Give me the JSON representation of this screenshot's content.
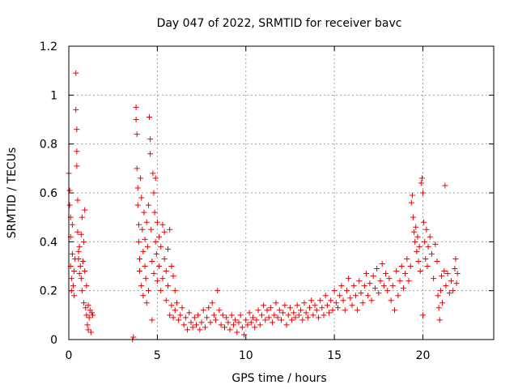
{
  "chart_data": {
    "type": "scatter",
    "title": "Day 047 of 2022, SRMTID for receiver bavc",
    "xlabel": "GPS time / hours",
    "ylabel": "SRMTID / TECUs",
    "xlim": [
      0,
      24
    ],
    "ylim": [
      0,
      1.2
    ],
    "xticks": [
      0,
      5,
      10,
      15,
      20
    ],
    "xtick_labels": [
      "0",
      "5",
      "10",
      "15",
      "20"
    ],
    "yticks": [
      0,
      0.2,
      0.4,
      0.6,
      0.8,
      1,
      1.2
    ],
    "ytick_labels": [
      "0",
      "0.2",
      "0.4",
      "0.6",
      "0.8",
      "1",
      "1.2"
    ],
    "grid": true,
    "marker": "+",
    "series": [
      {
        "name": "SRMTID",
        "color": "#ee0000",
        "points": [
          [
            0.0,
            0.68
          ],
          [
            0.05,
            0.61
          ],
          [
            0.05,
            0.55
          ],
          [
            0.1,
            0.5
          ],
          [
            0.1,
            0.42
          ],
          [
            0.1,
            0.3
          ],
          [
            0.15,
            0.25
          ],
          [
            0.15,
            0.2
          ],
          [
            0.2,
            0.35
          ],
          [
            0.2,
            0.47
          ],
          [
            0.25,
            0.22
          ],
          [
            0.3,
            0.28
          ],
          [
            0.3,
            0.18
          ],
          [
            0.35,
            0.33
          ],
          [
            0.4,
            1.09
          ],
          [
            0.4,
            0.94
          ],
          [
            0.45,
            0.86
          ],
          [
            0.45,
            0.77
          ],
          [
            0.45,
            0.71
          ],
          [
            0.5,
            0.57
          ],
          [
            0.5,
            0.44
          ],
          [
            0.55,
            0.36
          ],
          [
            0.55,
            0.33
          ],
          [
            0.6,
            0.27
          ],
          [
            0.6,
            0.38
          ],
          [
            0.65,
            0.3
          ],
          [
            0.7,
            0.25
          ],
          [
            0.7,
            0.43
          ],
          [
            0.75,
            0.5
          ],
          [
            0.75,
            0.2
          ],
          [
            0.8,
            0.32
          ],
          [
            0.85,
            0.15
          ],
          [
            0.85,
            0.4
          ],
          [
            0.9,
            0.53
          ],
          [
            0.9,
            0.28
          ],
          [
            0.95,
            0.13
          ],
          [
            1.0,
            0.1
          ],
          [
            1.0,
            0.22
          ],
          [
            1.05,
            0.06
          ],
          [
            1.1,
            0.14
          ],
          [
            1.1,
            0.04
          ],
          [
            1.15,
            0.09
          ],
          [
            1.2,
            0.12
          ],
          [
            1.25,
            0.03
          ],
          [
            1.3,
            0.11
          ],
          [
            1.35,
            0.1
          ],
          [
            3.6,
            0.0
          ],
          [
            3.65,
            0.01
          ],
          [
            3.8,
            0.95
          ],
          [
            3.8,
            0.9
          ],
          [
            3.85,
            0.84
          ],
          [
            3.85,
            0.7
          ],
          [
            3.9,
            0.62
          ],
          [
            3.9,
            0.55
          ],
          [
            3.95,
            0.47
          ],
          [
            3.95,
            0.4
          ],
          [
            4.0,
            0.33
          ],
          [
            4.0,
            0.28
          ],
          [
            4.05,
            0.66
          ],
          [
            4.1,
            0.58
          ],
          [
            4.1,
            0.22
          ],
          [
            4.15,
            0.45
          ],
          [
            4.2,
            0.36
          ],
          [
            4.2,
            0.18
          ],
          [
            4.25,
            0.52
          ],
          [
            4.3,
            0.41
          ],
          [
            4.3,
            0.3
          ],
          [
            4.35,
            0.25
          ],
          [
            4.4,
            0.48
          ],
          [
            4.4,
            0.15
          ],
          [
            4.45,
            0.38
          ],
          [
            4.5,
            0.55
          ],
          [
            4.5,
            0.2
          ],
          [
            4.55,
            0.91
          ],
          [
            4.6,
            0.82
          ],
          [
            4.6,
            0.76
          ],
          [
            4.65,
            0.45
          ],
          [
            4.7,
            0.32
          ],
          [
            4.7,
            0.08
          ],
          [
            4.75,
            0.68
          ],
          [
            4.8,
            0.6
          ],
          [
            4.8,
            0.27
          ],
          [
            4.85,
            0.52
          ],
          [
            4.9,
            0.4
          ],
          [
            4.9,
            0.66
          ],
          [
            4.95,
            0.35
          ],
          [
            5.0,
            0.48
          ],
          [
            5.0,
            0.24
          ],
          [
            5.1,
            0.3
          ],
          [
            5.1,
            0.42
          ],
          [
            5.2,
            0.38
          ],
          [
            5.2,
            0.2
          ],
          [
            5.3,
            0.47
          ],
          [
            5.3,
            0.25
          ],
          [
            5.4,
            0.33
          ],
          [
            5.4,
            0.44
          ],
          [
            5.5,
            0.28
          ],
          [
            5.5,
            0.16
          ],
          [
            5.6,
            0.37
          ],
          [
            5.6,
            0.22
          ],
          [
            5.7,
            0.45
          ],
          [
            5.7,
            0.1
          ],
          [
            5.8,
            0.3
          ],
          [
            5.8,
            0.14
          ],
          [
            5.9,
            0.26
          ],
          [
            5.9,
            0.09
          ],
          [
            6.0,
            0.2
          ],
          [
            6.0,
            0.12
          ],
          [
            6.1,
            0.15
          ],
          [
            6.2,
            0.08
          ],
          [
            6.3,
            0.1
          ],
          [
            6.4,
            0.13
          ],
          [
            6.5,
            0.06
          ],
          [
            6.6,
            0.09
          ],
          [
            6.7,
            0.04
          ],
          [
            6.8,
            0.11
          ],
          [
            6.9,
            0.07
          ],
          [
            7.0,
            0.05
          ],
          [
            7.1,
            0.09
          ],
          [
            7.2,
            0.06
          ],
          [
            7.3,
            0.1
          ],
          [
            7.4,
            0.04
          ],
          [
            7.5,
            0.07
          ],
          [
            7.6,
            0.12
          ],
          [
            7.7,
            0.05
          ],
          [
            7.8,
            0.09
          ],
          [
            7.9,
            0.13
          ],
          [
            8.0,
            0.07
          ],
          [
            8.1,
            0.15
          ],
          [
            8.2,
            0.1
          ],
          [
            8.3,
            0.08
          ],
          [
            8.4,
            0.2
          ],
          [
            8.5,
            0.12
          ],
          [
            8.6,
            0.06
          ],
          [
            8.7,
            0.1
          ],
          [
            8.8,
            0.05
          ],
          [
            8.9,
            0.09
          ],
          [
            9.0,
            0.07
          ],
          [
            9.1,
            0.04
          ],
          [
            9.2,
            0.1
          ],
          [
            9.3,
            0.06
          ],
          [
            9.4,
            0.08
          ],
          [
            9.5,
            0.03
          ],
          [
            9.6,
            0.07
          ],
          [
            9.7,
            0.1
          ],
          [
            9.8,
            0.05
          ],
          [
            9.9,
            0.02
          ],
          [
            10.0,
            0.08
          ],
          [
            10.1,
            0.06
          ],
          [
            10.2,
            0.11
          ],
          [
            10.3,
            0.07
          ],
          [
            10.4,
            0.09
          ],
          [
            10.5,
            0.05
          ],
          [
            10.6,
            0.08
          ],
          [
            10.7,
            0.12
          ],
          [
            10.8,
            0.06
          ],
          [
            10.9,
            0.1
          ],
          [
            11.0,
            0.14
          ],
          [
            11.1,
            0.08
          ],
          [
            11.2,
            0.12
          ],
          [
            11.3,
            0.09
          ],
          [
            11.4,
            0.13
          ],
          [
            11.5,
            0.07
          ],
          [
            11.6,
            0.1
          ],
          [
            11.7,
            0.15
          ],
          [
            11.8,
            0.09
          ],
          [
            11.9,
            0.12
          ],
          [
            12.0,
            0.08
          ],
          [
            12.1,
            0.11
          ],
          [
            12.2,
            0.14
          ],
          [
            12.3,
            0.06
          ],
          [
            12.4,
            0.1
          ],
          [
            12.5,
            0.13
          ],
          [
            12.6,
            0.08
          ],
          [
            12.7,
            0.11
          ],
          [
            12.8,
            0.09
          ],
          [
            12.9,
            0.14
          ],
          [
            13.0,
            0.1
          ],
          [
            13.1,
            0.12
          ],
          [
            13.2,
            0.08
          ],
          [
            13.3,
            0.15
          ],
          [
            13.4,
            0.11
          ],
          [
            13.5,
            0.09
          ],
          [
            13.6,
            0.13
          ],
          [
            13.7,
            0.16
          ],
          [
            13.8,
            0.1
          ],
          [
            13.9,
            0.14
          ],
          [
            14.0,
            0.12
          ],
          [
            14.1,
            0.09
          ],
          [
            14.2,
            0.16
          ],
          [
            14.3,
            0.13
          ],
          [
            14.4,
            0.1
          ],
          [
            14.5,
            0.18
          ],
          [
            14.6,
            0.14
          ],
          [
            14.7,
            0.11
          ],
          [
            14.8,
            0.16
          ],
          [
            14.9,
            0.12
          ],
          [
            15.0,
            0.2
          ],
          [
            15.1,
            0.15
          ],
          [
            15.2,
            0.13
          ],
          [
            15.3,
            0.18
          ],
          [
            15.4,
            0.22
          ],
          [
            15.5,
            0.16
          ],
          [
            15.6,
            0.12
          ],
          [
            15.7,
            0.2
          ],
          [
            15.8,
            0.25
          ],
          [
            15.9,
            0.17
          ],
          [
            16.0,
            0.14
          ],
          [
            16.1,
            0.22
          ],
          [
            16.2,
            0.18
          ],
          [
            16.3,
            0.12
          ],
          [
            16.4,
            0.24
          ],
          [
            16.5,
            0.19
          ],
          [
            16.6,
            0.15
          ],
          [
            16.7,
            0.22
          ],
          [
            16.8,
            0.27
          ],
          [
            16.9,
            0.18
          ],
          [
            17.0,
            0.23
          ],
          [
            17.1,
            0.16
          ],
          [
            17.2,
            0.26
          ],
          [
            17.3,
            0.21
          ],
          [
            17.4,
            0.29
          ],
          [
            17.5,
            0.19
          ],
          [
            17.6,
            0.24
          ],
          [
            17.7,
            0.31
          ],
          [
            17.8,
            0.22
          ],
          [
            17.9,
            0.27
          ],
          [
            18.0,
            0.2
          ],
          [
            18.1,
            0.25
          ],
          [
            18.2,
            0.16
          ],
          [
            18.3,
            0.22
          ],
          [
            18.4,
            0.12
          ],
          [
            18.5,
            0.28
          ],
          [
            18.6,
            0.18
          ],
          [
            18.7,
            0.24
          ],
          [
            18.8,
            0.3
          ],
          [
            18.9,
            0.21
          ],
          [
            19.0,
            0.27
          ],
          [
            19.1,
            0.33
          ],
          [
            19.2,
            0.24
          ],
          [
            19.3,
            0.3
          ],
          [
            19.35,
            0.56
          ],
          [
            19.4,
            0.59
          ],
          [
            19.45,
            0.5
          ],
          [
            19.5,
            0.44
          ],
          [
            19.55,
            0.4
          ],
          [
            19.6,
            0.46
          ],
          [
            19.65,
            0.36
          ],
          [
            19.7,
            0.42
          ],
          [
            19.75,
            0.32
          ],
          [
            19.8,
            0.38
          ],
          [
            19.85,
            0.28
          ],
          [
            19.9,
            0.64
          ],
          [
            19.95,
            0.66
          ],
          [
            20.0,
            0.6
          ],
          [
            20.0,
            0.1
          ],
          [
            20.05,
            0.48
          ],
          [
            20.1,
            0.4
          ],
          [
            20.15,
            0.33
          ],
          [
            20.2,
            0.45
          ],
          [
            20.25,
            0.3
          ],
          [
            20.3,
            0.38
          ],
          [
            20.4,
            0.42
          ],
          [
            20.5,
            0.35
          ],
          [
            20.6,
            0.25
          ],
          [
            20.7,
            0.39
          ],
          [
            20.8,
            0.32
          ],
          [
            20.85,
            0.18
          ],
          [
            20.9,
            0.13
          ],
          [
            20.95,
            0.08
          ],
          [
            21.0,
            0.2
          ],
          [
            21.05,
            0.26
          ],
          [
            21.1,
            0.15
          ],
          [
            21.2,
            0.28
          ],
          [
            21.25,
            0.63
          ],
          [
            21.3,
            0.22
          ],
          [
            21.4,
            0.27
          ],
          [
            21.5,
            0.19
          ],
          [
            21.6,
            0.24
          ],
          [
            21.7,
            0.2
          ],
          [
            21.8,
            0.29
          ],
          [
            21.85,
            0.33
          ],
          [
            21.9,
            0.23
          ],
          [
            21.95,
            0.27
          ]
        ]
      }
    ]
  }
}
